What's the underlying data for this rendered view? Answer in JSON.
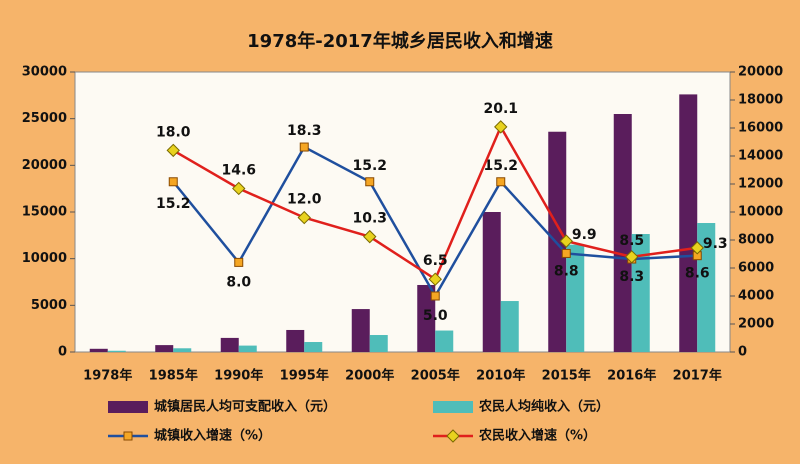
{
  "chart_data": {
    "type": "bar-line",
    "title": "1978年-2017年城乡居民收入和增速",
    "categories": [
      "1978年",
      "1985年",
      "1990年",
      "1995年",
      "2000年",
      "2005年",
      "2010年",
      "2015年",
      "2016年",
      "2017年"
    ],
    "ylim": [
      0,
      30000
    ],
    "yticks": [
      0,
      5000,
      10000,
      15000,
      20000,
      25000,
      30000
    ],
    "y2lim": [
      0,
      20000
    ],
    "y2ticks": [
      0,
      2000,
      4000,
      6000,
      8000,
      10000,
      12000,
      14000,
      16000,
      18000,
      20000
    ],
    "y3lim": [
      0,
      25
    ],
    "series": [
      {
        "name": "城镇居民人均可支配收入（元）",
        "kind": "bar",
        "color": "#5a1d5c",
        "values": [
          343,
          739,
          1510,
          2360,
          4600,
          7180,
          15000,
          23600,
          25500,
          27600
        ]
      },
      {
        "name": "农民人均纯收入（元）",
        "kind": "bar",
        "color": "#4fbdb9",
        "values": [
          134,
          398,
          686,
          1070,
          1820,
          2300,
          5460,
          11500,
          12640,
          13820
        ]
      },
      {
        "name": "城镇收入增速（%）",
        "kind": "line",
        "axis": "y3",
        "color": "#1f4f9e",
        "marker": "square",
        "marker_color": "#f5a623",
        "values": [
          null,
          15.2,
          8.0,
          18.3,
          15.2,
          5.0,
          15.2,
          8.8,
          8.3,
          8.6
        ],
        "value_labels": [
          null,
          "15.2",
          "8.0",
          "18.3",
          "15.2",
          "5.0",
          "15.2",
          "8.8",
          "8.3",
          "8.6"
        ]
      },
      {
        "name": "农民收入增速（%）",
        "kind": "line",
        "axis": "y3",
        "color": "#e0201c",
        "marker": "diamond",
        "marker_color": "#e8d21e",
        "values": [
          null,
          18.0,
          14.6,
          12.0,
          10.3,
          6.5,
          20.1,
          9.9,
          8.5,
          9.3
        ],
        "value_labels": [
          null,
          "18.0",
          "14.6",
          "12.0",
          "10.3",
          "6.5",
          "20.1",
          "9.9",
          "8.5",
          "9.3"
        ]
      }
    ]
  }
}
